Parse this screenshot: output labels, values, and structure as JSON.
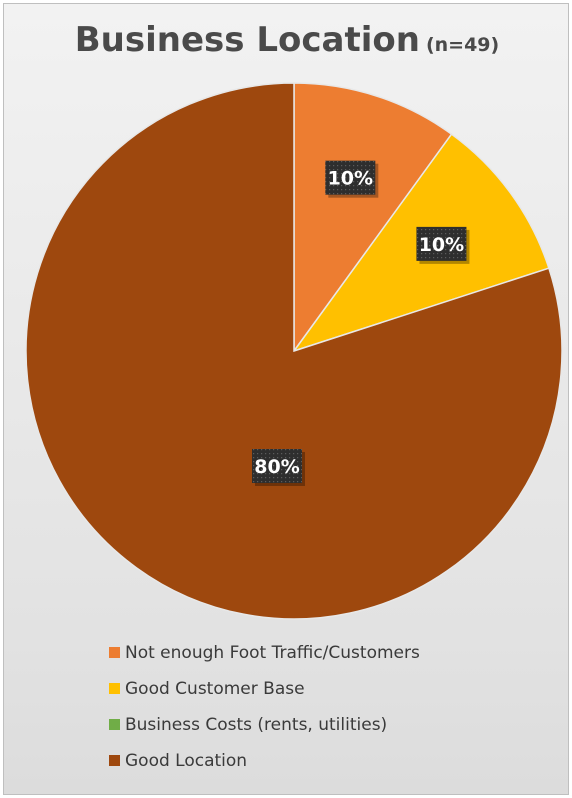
{
  "chart_data": {
    "type": "pie",
    "title": "Business Location",
    "subtitle": "(n=49)",
    "slices": [
      {
        "name": "Not enough Foot Traffic/Customers",
        "value": 10,
        "label": "10%",
        "color": "#ed7d31"
      },
      {
        "name": "Good Customer Base",
        "value": 10,
        "label": "10%",
        "color": "#ffc000"
      },
      {
        "name": "Business Costs (rents, utilities)",
        "value": 0,
        "label": "",
        "color": "#70ad47"
      },
      {
        "name": "Good Location",
        "value": 80,
        "label": "80%",
        "color": "#9e480e"
      }
    ],
    "legend_position": "bottom"
  }
}
